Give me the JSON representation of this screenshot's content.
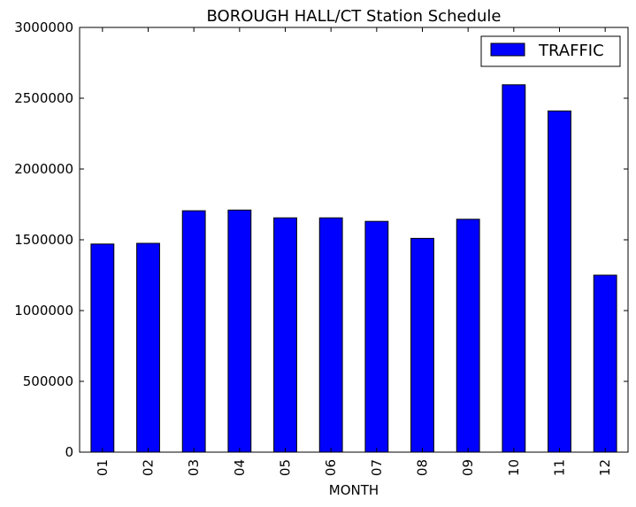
{
  "chart_data": {
    "type": "bar",
    "title": "BOROUGH HALL/CT Station Schedule",
    "xlabel": "MONTH",
    "ylabel": "",
    "categories": [
      "01",
      "02",
      "03",
      "04",
      "05",
      "06",
      "07",
      "08",
      "09",
      "10",
      "11",
      "12"
    ],
    "series": [
      {
        "name": "TRAFFIC",
        "color": "#0000ff",
        "values": [
          1470000,
          1475000,
          1705000,
          1710000,
          1655000,
          1655000,
          1630000,
          1510000,
          1645000,
          2595000,
          2410000,
          1250000
        ]
      }
    ],
    "ylim": [
      0,
      3000000
    ],
    "yticks": [
      0,
      500000,
      1000000,
      1500000,
      2000000,
      2500000,
      3000000
    ],
    "ytick_labels": [
      "0",
      "500000",
      "1000000",
      "1500000",
      "2000000",
      "2500000",
      "3000000"
    ],
    "legend_position": "top-right",
    "grid": false
  }
}
